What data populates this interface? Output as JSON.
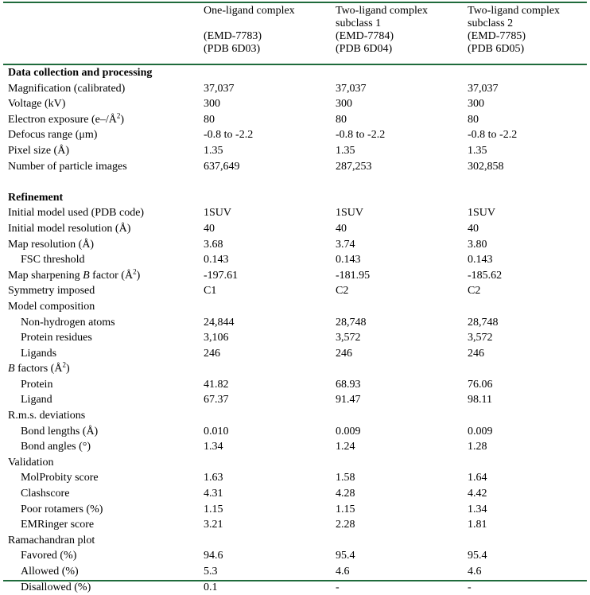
{
  "header": {
    "col1": {
      "line1": "One-ligand complex",
      "line2": "",
      "line3": "(EMD-7783)",
      "line4": "(PDB 6D03)"
    },
    "col2": {
      "line1": "Two-ligand complex",
      "line2": "subclass 1",
      "line3": "(EMD-7784)",
      "line4": "(PDB 6D04)"
    },
    "col3": {
      "line1": "Two-ligand complex",
      "line2": "subclass 2",
      "line3": "(EMD-7785)",
      "line4": "(PDB 6D05)"
    }
  },
  "rows": [
    {
      "type": "section",
      "label": "Data collection and processing",
      "v1": "",
      "v2": "",
      "v3": ""
    },
    {
      "type": "row",
      "label": "Magnification (calibrated)",
      "v1": "37,037",
      "v2": "37,037",
      "v3": "37,037"
    },
    {
      "type": "row",
      "label": "Voltage (kV)",
      "v1": "300",
      "v2": "300",
      "v3": "300"
    },
    {
      "type": "row",
      "label": "Electron exposure (e–/Å",
      "sup": "2",
      "suffix": ")",
      "v1": "80",
      "v2": "80",
      "v3": "80"
    },
    {
      "type": "row",
      "label": "Defocus range (μm)",
      "v1": "-0.8 to -2.2",
      "v2": "-0.8 to -2.2",
      "v3": "-0.8 to -2.2"
    },
    {
      "type": "row",
      "label": "Pixel size (Å)",
      "v1": "1.35",
      "v2": "1.35",
      "v3": "1.35"
    },
    {
      "type": "row",
      "label": "Number of particle images",
      "v1": "637,649",
      "v2": "287,253",
      "v3": "302,858"
    },
    {
      "type": "blank",
      "label": "",
      "v1": "",
      "v2": "",
      "v3": ""
    },
    {
      "type": "section",
      "label": "Refinement",
      "v1": "",
      "v2": "",
      "v3": ""
    },
    {
      "type": "row",
      "label": "Initial model used (PDB code)",
      "v1": "1SUV",
      "v2": "1SUV",
      "v3": "1SUV"
    },
    {
      "type": "row",
      "label": "Initial model resolution (Å)",
      "v1": "40",
      "v2": "40",
      "v3": "40"
    },
    {
      "type": "row",
      "label": "Map resolution (Å)",
      "v1": "3.68",
      "v2": "3.74",
      "v3": "3.80"
    },
    {
      "type": "row",
      "indent": true,
      "label": "FSC threshold",
      "v1": "0.143",
      "v2": "0.143",
      "v3": "0.143"
    },
    {
      "type": "row",
      "label": "Map sharpening ",
      "italic": "B",
      "rest": " factor (Å",
      "sup": "2",
      "suffix": ")",
      "v1": "-197.61",
      "v2": "-181.95",
      "v3": "-185.62"
    },
    {
      "type": "row",
      "label": "Symmetry imposed",
      "v1": "C1",
      "v2": "C2",
      "v3": "C2"
    },
    {
      "type": "row",
      "label": "Model composition",
      "v1": "",
      "v2": "",
      "v3": ""
    },
    {
      "type": "row",
      "indent": true,
      "label": "Non-hydrogen atoms",
      "v1": "24,844",
      "v2": "28,748",
      "v3": "28,748"
    },
    {
      "type": "row",
      "indent": true,
      "label": "Protein residues",
      "v1": "3,106",
      "v2": "3,572",
      "v3": "3,572"
    },
    {
      "type": "row",
      "indent": true,
      "label": "Ligands",
      "v1": "246",
      "v2": "246",
      "v3": "246"
    },
    {
      "type": "row",
      "label": "",
      "italic": "B",
      "rest": " factors (Å",
      "sup": "2",
      "suffix": ")",
      "v1": "",
      "v2": "",
      "v3": ""
    },
    {
      "type": "row",
      "indent": true,
      "label": "Protein",
      "v1": "41.82",
      "v2": "68.93",
      "v3": "76.06"
    },
    {
      "type": "row",
      "indent": true,
      "label": "Ligand",
      "v1": "67.37",
      "v2": "91.47",
      "v3": "98.11"
    },
    {
      "type": "row",
      "label": "R.m.s. deviations",
      "v1": "",
      "v2": "",
      "v3": ""
    },
    {
      "type": "row",
      "indent": true,
      "label": "Bond lengths (Å)",
      "v1": "0.010",
      "v2": "0.009",
      "v3": "0.009"
    },
    {
      "type": "row",
      "indent": true,
      "label": "Bond angles (°)",
      "v1": "1.34",
      "v2": "1.24",
      "v3": "1.28"
    },
    {
      "type": "row",
      "label": "Validation",
      "v1": "",
      "v2": "",
      "v3": ""
    },
    {
      "type": "row",
      "indent": true,
      "label": "MolProbity score",
      "v1": "1.63",
      "v2": "1.58",
      "v3": "1.64"
    },
    {
      "type": "row",
      "indent": true,
      "label": "Clashscore",
      "v1": "4.31",
      "v2": "4.28",
      "v3": "4.42"
    },
    {
      "type": "row",
      "indent": true,
      "label": "Poor rotamers (%)",
      "v1": "1.15",
      "v2": "1.15",
      "v3": "1.34"
    },
    {
      "type": "row",
      "indent": true,
      "label": "EMRinger score",
      "v1": "3.21",
      "v2": "2.28",
      "v3": "1.81"
    },
    {
      "type": "row",
      "label": "Ramachandran plot",
      "v1": "",
      "v2": "",
      "v3": ""
    },
    {
      "type": "row",
      "indent": true,
      "label": "Favored (%)",
      "v1": "94.6",
      "v2": "95.4",
      "v3": "95.4"
    },
    {
      "type": "row",
      "indent": true,
      "label": "Allowed (%)",
      "v1": "5.3",
      "v2": "4.6",
      "v3": "4.6"
    },
    {
      "type": "row",
      "indent": true,
      "label": "Disallowed (%)",
      "v1": "0.1",
      "v2": "-",
      "v3": "-"
    }
  ]
}
